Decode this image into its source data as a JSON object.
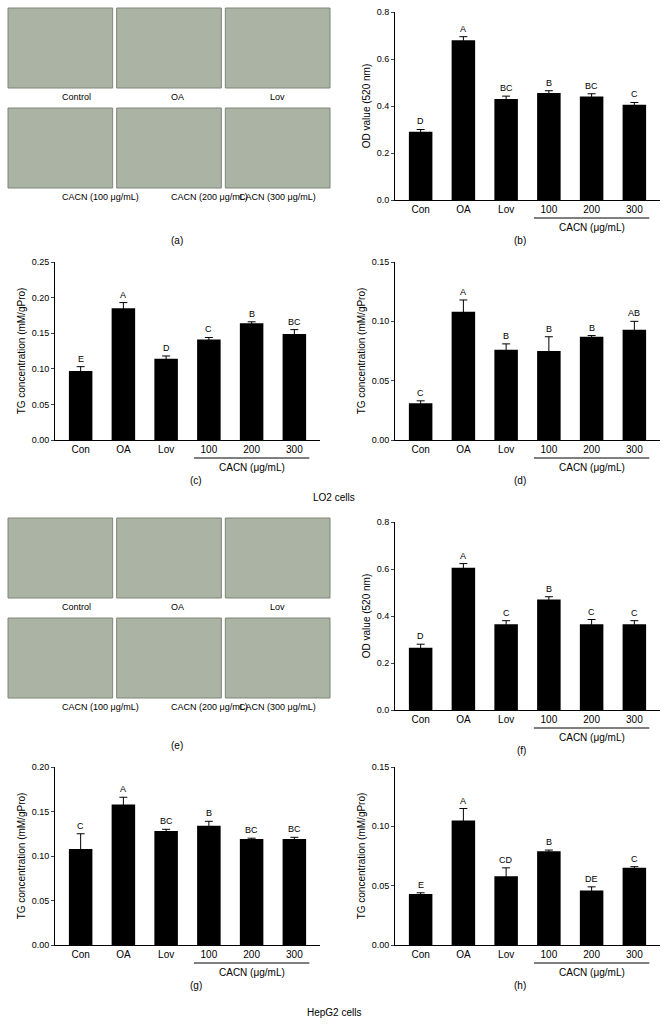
{
  "image_panels": [
    {
      "panel": "(a)",
      "captions": [
        "Control",
        "OA",
        "Lov",
        "CACN (100 μg/mL)",
        "CACN (200 μg/mL)",
        "CACN (300 μg/mL)"
      ]
    },
    {
      "panel": "(e)",
      "captions": [
        "Control",
        "OA",
        "Lov",
        "CACN (100 μg/mL)",
        "CACN (200 μg/mL)",
        "CACN (300 μg/mL)"
      ]
    }
  ],
  "group_labels": [
    "LO2 cells",
    "HepG2 cells"
  ],
  "chart_data": [
    {
      "type": "bar",
      "panel": "(b)",
      "y_label": "OD value (520 nm)",
      "categories": [
        "Con",
        "OA",
        "Lov",
        "100",
        "200",
        "300"
      ],
      "x_group": {
        "label": "CACN (μg/mL)",
        "categories": [
          "100",
          "200",
          "300"
        ]
      },
      "values": [
        0.29,
        0.68,
        0.43,
        0.455,
        0.44,
        0.405
      ],
      "errors": [
        0.01,
        0.015,
        0.012,
        0.01,
        0.012,
        0.01
      ],
      "annotations": [
        "D",
        "A",
        "BC",
        "B",
        "BC",
        "C"
      ],
      "color": "#000000",
      "ylim": [
        0,
        0.8
      ],
      "yticks": [
        {
          "value": 0,
          "label": "0.0"
        },
        0.2,
        0.4,
        0.6,
        0.8
      ]
    },
    {
      "type": "bar",
      "panel": "(c)",
      "y_label": "TG concentration (mM/gPro)",
      "categories": [
        "Con",
        "OA",
        "Lov",
        "100",
        "200",
        "300"
      ],
      "x_group": {
        "label": "CACN (μg/mL)",
        "categories": [
          "100",
          "200",
          "300"
        ]
      },
      "values": [
        0.097,
        0.185,
        0.114,
        0.141,
        0.164,
        0.149
      ],
      "errors": [
        0.006,
        0.008,
        0.004,
        0.003,
        0.002,
        0.006
      ],
      "annotations": [
        "E",
        "A",
        "D",
        "C",
        "B",
        "BC"
      ],
      "color": "#000000",
      "ylim": [
        0,
        0.25
      ],
      "yticks": [
        {
          "value": 0,
          "label": "0.00"
        },
        0.05,
        {
          "value": 0.1,
          "label": "0.10"
        },
        0.15,
        {
          "value": 0.2,
          "label": "0.20"
        },
        0.25
      ]
    },
    {
      "type": "bar",
      "panel": "(d)",
      "y_label": "TG concentration (mM/gPro)",
      "categories": [
        "Con",
        "OA",
        "Lov",
        "100",
        "200",
        "300"
      ],
      "x_group": {
        "label": "CACN (μg/mL)",
        "categories": [
          "100",
          "200",
          "300"
        ]
      },
      "values": [
        0.031,
        0.108,
        0.076,
        0.075,
        0.087,
        0.093
      ],
      "errors": [
        0.002,
        0.01,
        0.005,
        0.012,
        0.001,
        0.007
      ],
      "annotations": [
        "C",
        "A",
        "B",
        "B",
        "B",
        "AB"
      ],
      "color": "#000000",
      "ylim": [
        0,
        0.15
      ],
      "yticks": [
        {
          "value": 0,
          "label": "0.00"
        },
        0.05,
        {
          "value": 0.1,
          "label": "0.10"
        },
        0.15
      ]
    },
    {
      "type": "bar",
      "panel": "(f)",
      "y_label": "OD value (520 nm)",
      "categories": [
        "Con",
        "OA",
        "Lov",
        "100",
        "200",
        "300"
      ],
      "x_group": {
        "label": "CACN (μg/mL)",
        "categories": [
          "100",
          "200",
          "300"
        ]
      },
      "values": [
        0.265,
        0.605,
        0.365,
        0.47,
        0.365,
        0.365
      ],
      "errors": [
        0.015,
        0.018,
        0.015,
        0.012,
        0.02,
        0.015
      ],
      "annotations": [
        "D",
        "A",
        "C",
        "B",
        "C",
        "C"
      ],
      "color": "#000000",
      "ylim": [
        0,
        0.8
      ],
      "yticks": [
        {
          "value": 0,
          "label": "0.0"
        },
        0.2,
        0.4,
        0.6,
        0.8
      ]
    },
    {
      "type": "bar",
      "panel": "(g)",
      "y_label": "TG concentration (mM/gPro)",
      "categories": [
        "Con",
        "OA",
        "Lov",
        "100",
        "200",
        "300"
      ],
      "x_group": {
        "label": "CACN (μg/mL)",
        "categories": [
          "100",
          "200",
          "300"
        ]
      },
      "values": [
        0.108,
        0.158,
        0.128,
        0.134,
        0.119,
        0.119
      ],
      "errors": [
        0.017,
        0.008,
        0.002,
        0.005,
        0.001,
        0.002
      ],
      "annotations": [
        "C",
        "A",
        "BC",
        "B",
        "BC",
        "BC"
      ],
      "color": "#000000",
      "ylim": [
        0,
        0.2
      ],
      "yticks": [
        {
          "value": 0,
          "label": "0.00"
        },
        0.05,
        {
          "value": 0.1,
          "label": "0.10"
        },
        0.15,
        {
          "value": 0.2,
          "label": "0.20"
        }
      ]
    },
    {
      "type": "bar",
      "panel": "(h)",
      "y_label": "TG concentration (mM/gPro)",
      "categories": [
        "Con",
        "OA",
        "Lov",
        "100",
        "200",
        "300"
      ],
      "x_group": {
        "label": "CACN (μg/mL)",
        "categories": [
          "100",
          "200",
          "300"
        ]
      },
      "values": [
        0.043,
        0.105,
        0.058,
        0.079,
        0.046,
        0.065
      ],
      "errors": [
        0.001,
        0.01,
        0.007,
        0.001,
        0.003,
        0.001
      ],
      "annotations": [
        "E",
        "A",
        "CD",
        "B",
        "DE",
        "C"
      ],
      "color": "#000000",
      "ylim": [
        0,
        0.15
      ],
      "yticks": [
        {
          "value": 0,
          "label": "0.00"
        },
        0.05,
        {
          "value": 0.1,
          "label": "0.10"
        },
        0.15
      ]
    }
  ]
}
